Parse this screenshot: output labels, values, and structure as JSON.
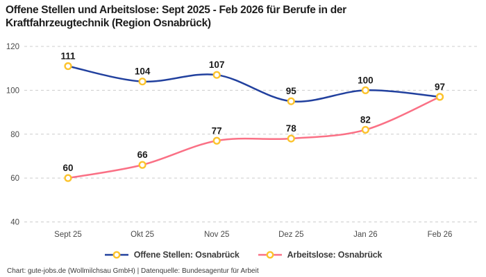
{
  "header": {
    "title": "Offene Stellen und Arbeitslose: Sept 2025 - Feb 2026 für Berufe in der Kraftfahrzeugtechnik (Region Osnabrück)"
  },
  "chart_data": {
    "type": "line",
    "title": "Offene Stellen und Arbeitslose: Sept 2025 - Feb 2026 für Berufe in der Kraftfahrzeugtechnik (Region Osnabrück)",
    "categories": [
      "Sept 25",
      "Okt 25",
      "Nov 25",
      "Dez 25",
      "Jan 26",
      "Feb 26"
    ],
    "series": [
      {
        "name": "Offene Stellen: Osnabrück",
        "values": [
          111,
          104,
          107,
          95,
          100,
          97
        ],
        "color": "#21409e"
      },
      {
        "name": "Arbeitslose: Osnabrück",
        "values": [
          60,
          66,
          77,
          78,
          82,
          97
        ],
        "color": "#fa7085"
      }
    ],
    "marker": {
      "fill": "#ffffff",
      "stroke": "#fcc32c"
    },
    "xlabel": "",
    "ylabel": "",
    "ylim": [
      40,
      120
    ],
    "yticks": [
      40,
      60,
      80,
      100,
      120
    ],
    "grid": "horizontal-dashed",
    "grid_color": "#cccccc",
    "curve": "smooth",
    "legend_position": "bottom",
    "value_label_color": "#1a1a1a",
    "tick_label_color": "#494949"
  },
  "footer": {
    "text": "Chart: gute-jobs.de (Wollmilchsau GmbH) | Datenquelle: Bundesagentur für Arbeit"
  }
}
